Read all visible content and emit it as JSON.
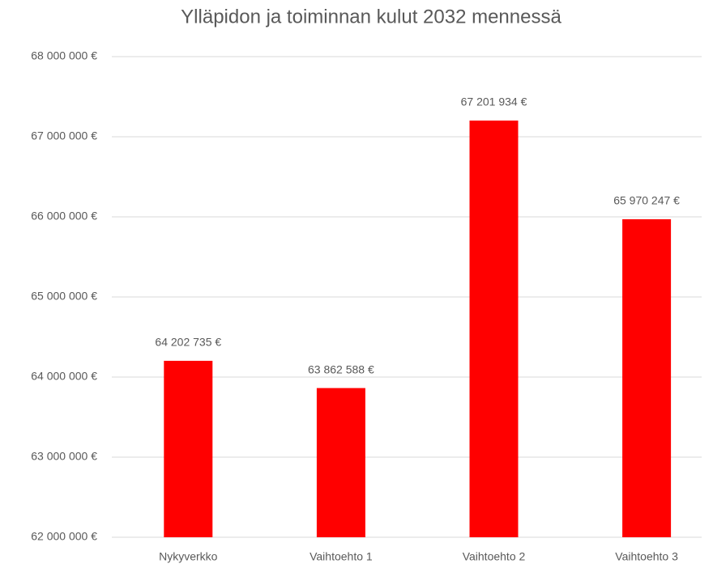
{
  "chart_data": {
    "type": "bar",
    "title": "Ylläpidon ja toiminnan kulut 2032 mennessä",
    "categories": [
      "Nykyverkko",
      "Vaihtoehto 1",
      "Vaihtoehto 2",
      "Vaihtoehto 3"
    ],
    "values": [
      64202735,
      63862588,
      67201934,
      65970247
    ],
    "value_labels": [
      "64 202 735 €",
      "63 862 588 €",
      "67 201 934 €",
      "65 970 247 €"
    ],
    "color": "#ff0000",
    "ylim": [
      62000000,
      68000000
    ],
    "yticks": [
      {
        "value": 62000000,
        "label": "62 000 000 €"
      },
      {
        "value": 63000000,
        "label": "63 000 000 €"
      },
      {
        "value": 64000000,
        "label": "64 000 000 €"
      },
      {
        "value": 65000000,
        "label": "65 000 000 €"
      },
      {
        "value": 66000000,
        "label": "66 000 000 €"
      },
      {
        "value": 67000000,
        "label": "67 000 000 €"
      },
      {
        "value": 68000000,
        "label": "68 000 000 €"
      }
    ],
    "grid": true
  }
}
